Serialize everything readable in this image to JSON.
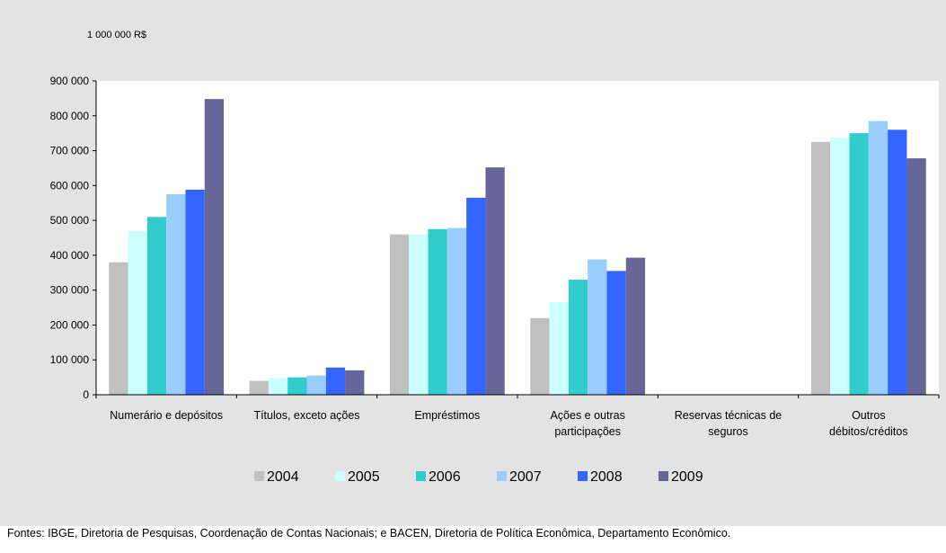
{
  "chart_data": {
    "type": "bar",
    "unit_label": "1 000 000 R$",
    "categories": [
      [
        "Numerário e depósitos"
      ],
      [
        "Títulos, exceto ações"
      ],
      [
        "Empréstimos"
      ],
      [
        "Ações e outras",
        "participações"
      ],
      [
        "Reservas técnicas de",
        "seguros"
      ],
      [
        "Outros",
        "débitos/créditos"
      ]
    ],
    "series": [
      {
        "name": "2004",
        "color": "#c0c0c0",
        "values": [
          380000,
          40000,
          460000,
          220000,
          0,
          725000
        ]
      },
      {
        "name": "2005",
        "color": "#ccffff",
        "values": [
          470000,
          48000,
          460000,
          265000,
          0,
          738000
        ]
      },
      {
        "name": "2006",
        "color": "#33cccc",
        "values": [
          510000,
          50000,
          475000,
          330000,
          0,
          750000
        ]
      },
      {
        "name": "2007",
        "color": "#99ccff",
        "values": [
          575000,
          55000,
          478000,
          388000,
          0,
          785000
        ]
      },
      {
        "name": "2008",
        "color": "#3366ff",
        "values": [
          588000,
          78000,
          565000,
          355000,
          0,
          760000
        ]
      },
      {
        "name": "2009",
        "color": "#666699",
        "values": [
          848000,
          70000,
          652000,
          393000,
          0,
          678000
        ]
      }
    ],
    "yticks": [
      "900 000",
      "800 000",
      "700 000",
      "600 000",
      "500 000",
      "400 000",
      "300 000",
      "200 000",
      "100 000",
      "0"
    ],
    "ylim": [
      0,
      900000
    ],
    "grid": false,
    "legend_position": "bottom"
  },
  "footer": {
    "source": "Fontes: IBGE, Diretoria de Pesquisas, Coordenação de Contas Nacionais; e BACEN, Diretoria de Política Econômica, Departamento Econômico."
  }
}
